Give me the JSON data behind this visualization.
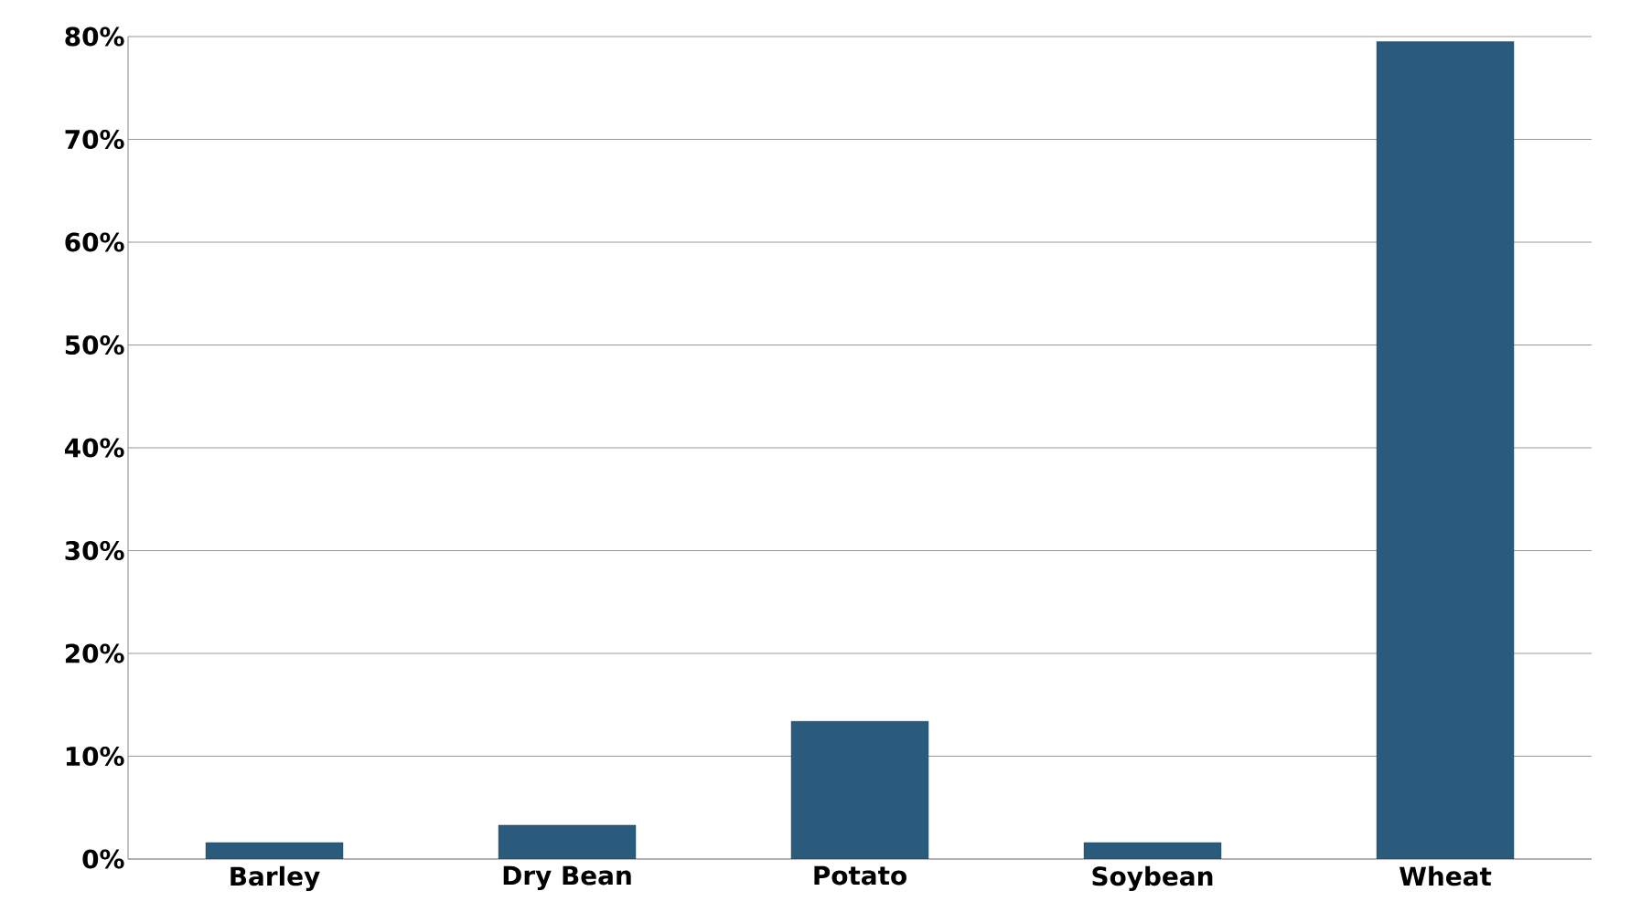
{
  "chart_data": {
    "type": "bar",
    "categories": [
      "Barley",
      "Dry Bean",
      "Potato",
      "Soybean",
      "Wheat"
    ],
    "values": [
      1.6,
      3.3,
      13.4,
      1.6,
      79.5
    ],
    "color": "#2a5b7c",
    "ylim": [
      0,
      80
    ],
    "yticks": [
      {
        "value": 0,
        "label": "0%"
      },
      {
        "value": 10,
        "label": "10%"
      },
      {
        "value": 20,
        "label": "20%"
      },
      {
        "value": 30,
        "label": "30%"
      },
      {
        "value": 40,
        "label": "40%"
      },
      {
        "value": 50,
        "label": "50%"
      },
      {
        "value": 60,
        "label": "60%"
      },
      {
        "value": 70,
        "label": "70%"
      },
      {
        "value": 80,
        "label": "80%"
      }
    ],
    "grid": "y"
  }
}
